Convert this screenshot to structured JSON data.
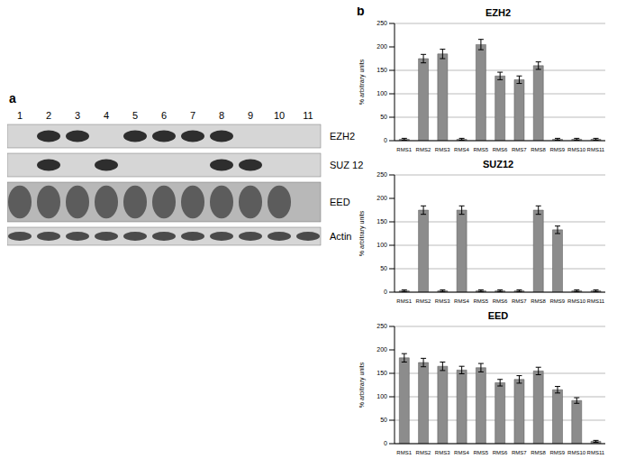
{
  "panels": [
    "a",
    "b"
  ],
  "blot": {
    "lanes": [
      1,
      2,
      3,
      4,
      5,
      6,
      7,
      8,
      9,
      10,
      11
    ],
    "rows": [
      {
        "label": "EZH2",
        "band_lanes": [
          2,
          3,
          5,
          6,
          7,
          8
        ]
      },
      {
        "label": "SUZ 12",
        "band_lanes": [
          2,
          4,
          8,
          9
        ]
      },
      {
        "label": "EED",
        "band_lanes": [
          1,
          2,
          3,
          4,
          5,
          6,
          7,
          8,
          9,
          10
        ]
      },
      {
        "label": "Actin",
        "band_lanes": [
          1,
          2,
          3,
          4,
          5,
          6,
          7,
          8,
          9,
          10,
          11
        ]
      }
    ]
  },
  "chart_data": [
    {
      "type": "bar",
      "title": "EZH2",
      "ylabel": "% arbitrary units",
      "categories": [
        "RMS1",
        "RMS2",
        "RMS3",
        "RMS4",
        "RMS5",
        "RMS6",
        "RMS7",
        "RMS8",
        "RMS9",
        "RMS10",
        "RMS11"
      ],
      "values": [
        3,
        175,
        185,
        3,
        205,
        138,
        130,
        160,
        3,
        3,
        3
      ],
      "errors": [
        2,
        9,
        10,
        2,
        11,
        8,
        8,
        8,
        2,
        2,
        2
      ],
      "ylim": [
        0,
        250
      ],
      "yticks": [
        0,
        50,
        100,
        150,
        200,
        250
      ],
      "grid": true,
      "color": "#8c8c8c"
    },
    {
      "type": "bar",
      "title": "SUZ12",
      "ylabel": "% arbitrary units",
      "categories": [
        "RMS1",
        "RMS2",
        "RMS3",
        "RMS4",
        "RMS5",
        "RMS6",
        "RMS7",
        "RMS8",
        "RMS9",
        "RMS10",
        "RMS11"
      ],
      "values": [
        3,
        175,
        3,
        175,
        3,
        3,
        3,
        175,
        133,
        3,
        3
      ],
      "errors": [
        2,
        9,
        2,
        9,
        2,
        2,
        2,
        9,
        8,
        2,
        2
      ],
      "ylim": [
        0,
        250
      ],
      "yticks": [
        0,
        50,
        100,
        150,
        200,
        250
      ],
      "grid": true,
      "color": "#8c8c8c"
    },
    {
      "type": "bar",
      "title": "EED",
      "ylabel": "% arbitrary units",
      "categories": [
        "RMS1",
        "RMS2",
        "RMS3",
        "RMS4",
        "RMS5",
        "RMS6",
        "RMS7",
        "RMS8",
        "RMS9",
        "RMS10",
        "RMS11"
      ],
      "values": [
        183,
        173,
        165,
        157,
        162,
        130,
        137,
        155,
        115,
        92,
        5
      ],
      "errors": [
        9,
        9,
        9,
        8,
        9,
        7,
        8,
        8,
        7,
        6,
        2
      ],
      "ylim": [
        0,
        250
      ],
      "yticks": [
        0,
        50,
        100,
        150,
        200,
        250
      ],
      "grid": true,
      "color": "#8c8c8c"
    }
  ]
}
